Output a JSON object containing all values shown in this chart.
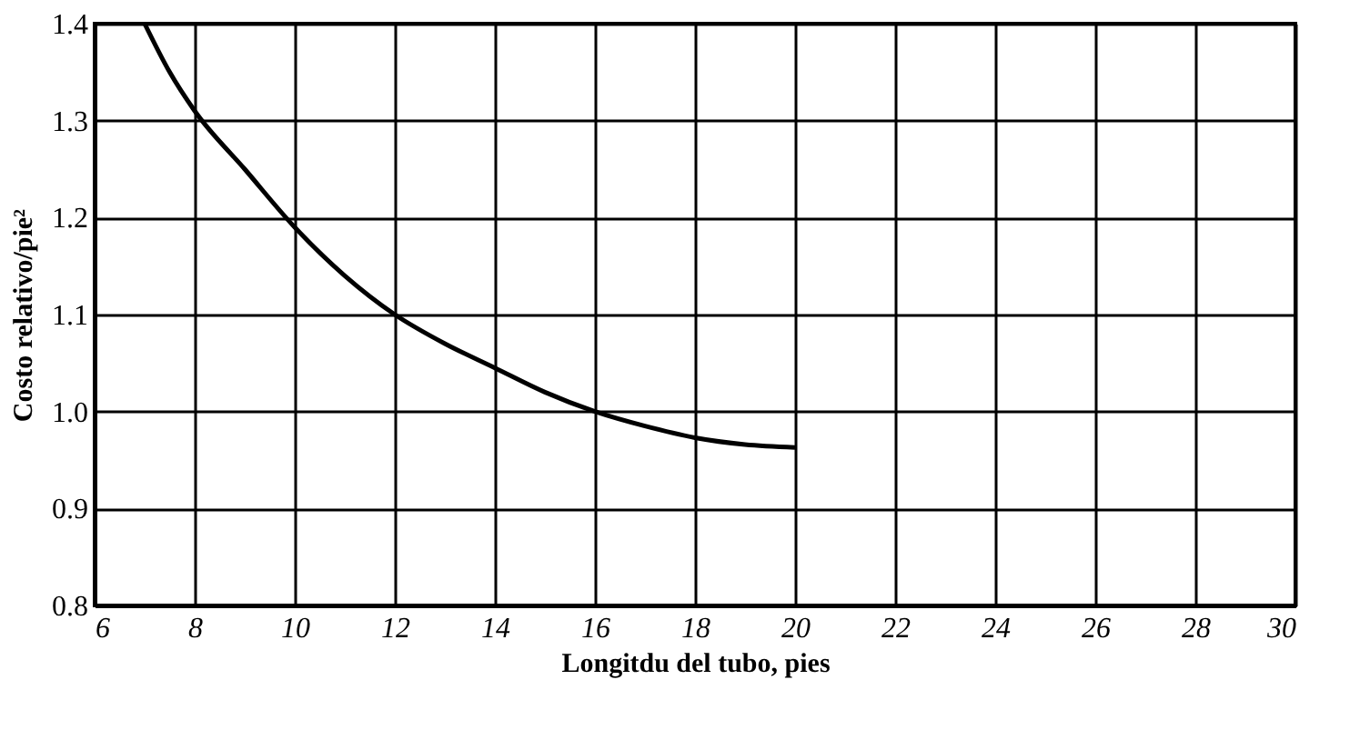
{
  "chart_data": {
    "type": "line",
    "xlabel": "Longitdu del tubo, pies",
    "ylabel": "Costo relativo/pie²",
    "x": [
      7,
      7.5,
      8,
      9,
      10,
      11,
      12,
      13,
      14,
      15,
      16,
      17,
      18,
      19,
      20
    ],
    "series": [
      {
        "color": "#000000",
        "values": [
          1.4,
          1.35,
          1.31,
          1.25,
          1.19,
          1.14,
          1.1,
          1.07,
          1.045,
          1.02,
          1.0,
          0.985,
          0.973,
          0.966,
          0.963
        ]
      }
    ],
    "xlim": [
      6,
      30
    ],
    "xticks": [
      6,
      8,
      10,
      12,
      14,
      16,
      18,
      20,
      22,
      24,
      26,
      28,
      30
    ],
    "ylim": [
      0.8,
      1.4
    ],
    "yticks": [
      0.8,
      0.9,
      {
        "value": 1,
        "label": "1.0"
      },
      1.1,
      1.2,
      1.3,
      1.4
    ],
    "grid": true,
    "marker": "none",
    "line_style": "solid"
  }
}
